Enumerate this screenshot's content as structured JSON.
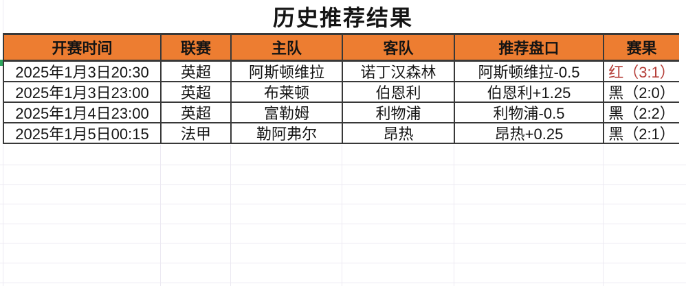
{
  "title": "历史推荐结果",
  "colors": {
    "header_bg": "#ED7D31",
    "border_dark": "#383838",
    "grid_line": "#ece9f2",
    "text_ink": "#141414",
    "result_red": "#B43C36",
    "result_black": "#141414",
    "marker_green": "#2EA75F"
  },
  "table": {
    "headers": [
      "开赛时间",
      "联赛",
      "主队",
      "客队",
      "推荐盘口",
      "赛果"
    ],
    "rows": [
      {
        "time": "2025年1月3日20:30",
        "league": "英超",
        "home": "阿斯顿维拉",
        "away": "诺丁汉森林",
        "handicap": "阿斯顿维拉-0.5",
        "result": "红（3:1）",
        "result_status": "red"
      },
      {
        "time": "2025年1月3日23:00",
        "league": "英超",
        "home": "布莱顿",
        "away": "伯恩利",
        "handicap": "伯恩利+1.25",
        "result": "黑（2:0）",
        "result_status": "black"
      },
      {
        "time": "2025年1月4日23:00",
        "league": "英超",
        "home": "富勒姆",
        "away": "利物浦",
        "handicap": "利物浦-0.5",
        "result": "黑（2:2）",
        "result_status": "black"
      },
      {
        "time": "2025年1月5日00:15",
        "league": "法甲",
        "home": "勒阿弗尔",
        "away": "昂热",
        "handicap": "昂热+0.25",
        "result": "黑（2:1）",
        "result_status": "black"
      }
    ]
  }
}
